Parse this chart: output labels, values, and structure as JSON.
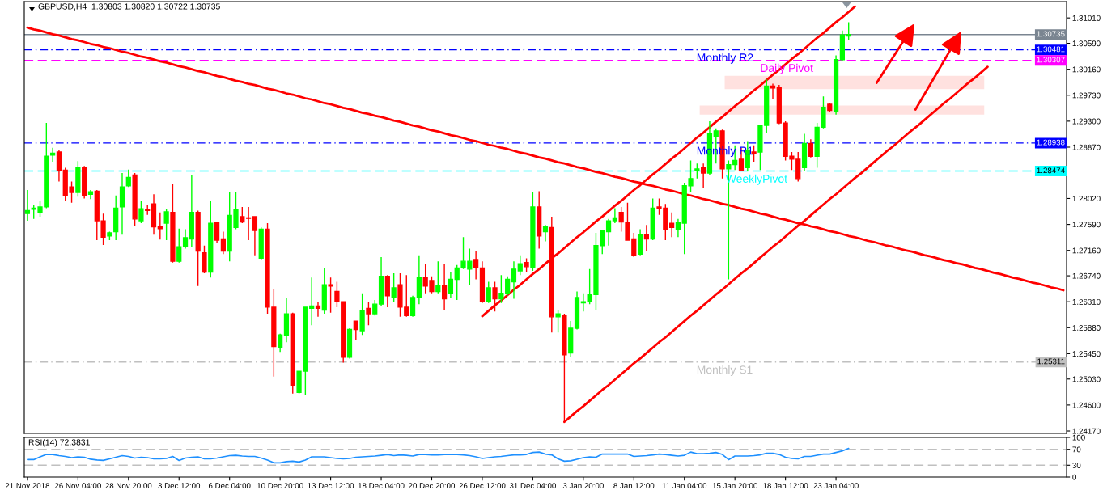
{
  "chart_data": [
    {
      "type": "candlestick",
      "title": "GBPUSD,H4  1.30803 1.30820 1.30722 1.30735",
      "categories": [
        null,
        null,
        null,
        null,
        null,
        null,
        null,
        null,
        null,
        null,
        null,
        null,
        null,
        null,
        null,
        null,
        null,
        null,
        null,
        null,
        null,
        null,
        null,
        null,
        null,
        null,
        null,
        null,
        null,
        null,
        null,
        null,
        null,
        null,
        null,
        null,
        null,
        null,
        null,
        null,
        null,
        null,
        null,
        null,
        null,
        null,
        null,
        null,
        null,
        null,
        null,
        null,
        null,
        null,
        null,
        null,
        null,
        null,
        null,
        null,
        null,
        null,
        null,
        null,
        null,
        null,
        null,
        null,
        null,
        null,
        null,
        null,
        null,
        null,
        null,
        null,
        null,
        null,
        null,
        null,
        null,
        null,
        null,
        null,
        null,
        null,
        null,
        null,
        null,
        null,
        null,
        null,
        null,
        null,
        null,
        null,
        null,
        null,
        null,
        null,
        null,
        null,
        null,
        null,
        null,
        null,
        null,
        null,
        null,
        null,
        null,
        null,
        null,
        null,
        null,
        null,
        null,
        null,
        null,
        null,
        null,
        null,
        null,
        null,
        null,
        null,
        null,
        null,
        null,
        null,
        null,
        null,
        null,
        null,
        null,
        null,
        null,
        null,
        null,
        null,
        null,
        null,
        null,
        null,
        null,
        null,
        null,
        null,
        null,
        null,
        null,
        null,
        null,
        null,
        null,
        null,
        null,
        null,
        null,
        null,
        null,
        null,
        null,
        null,
        null
      ],
      "ohlc": [
        [
          1.2777,
          1.2816,
          1.2765,
          1.2782
        ],
        [
          1.2784,
          1.2791,
          1.2768,
          1.2786
        ],
        [
          1.2779,
          1.2798,
          1.2772,
          1.2788
        ],
        [
          1.2788,
          1.2927,
          1.2786,
          1.2872
        ],
        [
          1.2874,
          1.2886,
          1.2863,
          1.2877
        ],
        [
          1.2879,
          1.2882,
          1.283,
          1.2849
        ],
        [
          1.2849,
          1.2853,
          1.2798,
          1.2807
        ],
        [
          1.2821,
          1.283,
          1.2795,
          1.2812
        ],
        [
          1.2812,
          1.2864,
          1.2805,
          1.2853
        ],
        [
          1.2854,
          1.2856,
          1.2802,
          1.2807
        ],
        [
          1.2809,
          1.2816,
          1.2801,
          1.2813
        ],
        [
          1.2814,
          1.2816,
          1.2733,
          1.2765
        ],
        [
          1.2765,
          1.2777,
          1.2725,
          1.2738
        ],
        [
          1.274,
          1.2747,
          1.2733,
          1.2745
        ],
        [
          1.2747,
          1.2807,
          1.2733,
          1.2786
        ],
        [
          1.2788,
          1.2844,
          1.2742,
          1.2821
        ],
        [
          1.2823,
          1.285,
          1.2821,
          1.2837
        ],
        [
          1.2841,
          1.2844,
          1.2756,
          1.2768
        ],
        [
          1.2765,
          1.2798,
          1.2761,
          1.2785
        ],
        [
          1.2784,
          1.2791,
          1.2775,
          1.2782
        ],
        [
          1.2793,
          1.2809,
          1.2742,
          1.2755
        ],
        [
          1.2756,
          1.2779,
          1.2734,
          1.2752
        ],
        [
          1.2761,
          1.2784,
          1.2733,
          1.278
        ],
        [
          1.2779,
          1.2826,
          1.2696,
          1.2698
        ],
        [
          1.2698,
          1.2752,
          1.2696,
          1.2722
        ],
        [
          1.2722,
          1.2751,
          1.2719,
          1.2737
        ],
        [
          1.2735,
          1.284,
          1.2722,
          1.2779
        ],
        [
          1.2779,
          1.2782,
          1.2657,
          1.2715
        ],
        [
          1.2712,
          1.2724,
          1.2678,
          1.268
        ],
        [
          1.268,
          1.2798,
          1.2671,
          1.2761
        ],
        [
          1.2762,
          1.2763,
          1.2728,
          1.2733
        ],
        [
          1.2735,
          1.2747,
          1.271,
          1.2715
        ],
        [
          1.2715,
          1.2812,
          1.2698,
          1.2774
        ],
        [
          1.2754,
          1.2812,
          1.2751,
          1.2784
        ],
        [
          1.2772,
          1.2788,
          1.2761,
          1.2763
        ],
        [
          1.277,
          1.2788,
          1.2733,
          1.2769
        ],
        [
          1.2772,
          1.2772,
          1.2708,
          1.2749
        ],
        [
          1.2703,
          1.2754,
          1.2701,
          1.2751
        ],
        [
          1.2751,
          1.2761,
          1.2611,
          1.2622
        ],
        [
          1.2622,
          1.2652,
          1.2507,
          1.2557
        ],
        [
          1.2555,
          1.2578,
          1.2548,
          1.2576
        ],
        [
          1.2576,
          1.2638,
          1.2564,
          1.2611
        ],
        [
          1.2611,
          1.2613,
          1.2479,
          1.2493
        ],
        [
          1.2481,
          1.2516,
          1.2479,
          1.2516
        ],
        [
          1.2516,
          1.2622,
          1.2476,
          1.2622
        ],
        [
          1.262,
          1.2671,
          1.2592,
          1.2624
        ],
        [
          1.2624,
          1.2631,
          1.2606,
          1.262
        ],
        [
          1.2617,
          1.2687,
          1.2611,
          1.2659
        ],
        [
          1.2659,
          1.2671,
          1.2613,
          1.2657
        ],
        [
          1.2648,
          1.2664,
          1.2622,
          1.2631
        ],
        [
          1.2631,
          1.2631,
          1.253,
          1.2539
        ],
        [
          1.2539,
          1.2587,
          1.2537,
          1.2585
        ],
        [
          1.2599,
          1.2599,
          1.2567,
          1.2585
        ],
        [
          1.2583,
          1.2645,
          1.2576,
          1.2617
        ],
        [
          1.262,
          1.2631,
          1.2592,
          1.2611
        ],
        [
          1.2611,
          1.2634,
          1.2608,
          1.2627
        ],
        [
          1.2627,
          1.2705,
          1.2624,
          1.2673
        ],
        [
          1.2673,
          1.2675,
          1.2622,
          1.2641
        ],
        [
          1.2638,
          1.2678,
          1.2631,
          1.2654
        ],
        [
          1.2659,
          1.2678,
          1.2606,
          1.2622
        ],
        [
          1.2622,
          1.2675,
          1.2606,
          1.2608
        ],
        [
          1.2608,
          1.2641,
          1.2606,
          1.2638
        ],
        [
          1.2638,
          1.2708,
          1.2627,
          1.2671
        ],
        [
          1.2671,
          1.2694,
          1.2645,
          1.2657
        ],
        [
          1.2666,
          1.2673,
          1.2645,
          1.2648
        ],
        [
          1.2648,
          1.2698,
          1.2645,
          1.2657
        ],
        [
          1.2657,
          1.2694,
          1.2617,
          1.2636
        ],
        [
          1.2645,
          1.268,
          1.2638,
          1.2668
        ],
        [
          1.2668,
          1.2692,
          1.2634,
          1.2687
        ],
        [
          1.2687,
          1.2738,
          1.2685,
          1.2698
        ],
        [
          1.2685,
          1.2719,
          1.2659,
          1.2698
        ],
        [
          1.2701,
          1.2715,
          1.2668,
          1.2687
        ],
        [
          1.2687,
          1.2698,
          1.2629,
          1.2631
        ],
        [
          1.2631,
          1.2664,
          1.2629,
          1.2654
        ],
        [
          1.2654,
          1.2664,
          1.2615,
          1.2636
        ],
        [
          1.2636,
          1.2675,
          1.2629,
          1.2645
        ],
        [
          1.2645,
          1.2673,
          1.2641,
          1.2668
        ],
        [
          1.2664,
          1.2698,
          1.2636,
          1.2685
        ],
        [
          1.2682,
          1.2708,
          1.2675,
          1.2694
        ],
        [
          1.2696,
          1.2703,
          1.268,
          1.2689
        ],
        [
          1.2687,
          1.2812,
          1.2682,
          1.2788
        ],
        [
          1.2788,
          1.2814,
          1.2719,
          1.274
        ],
        [
          1.2747,
          1.2758,
          1.2731,
          1.2756
        ],
        [
          1.2754,
          1.2772,
          1.258,
          1.2606
        ],
        [
          1.2606,
          1.2617,
          1.258,
          1.2611
        ],
        [
          1.2608,
          1.2611,
          1.2432,
          1.2543
        ],
        [
          1.2546,
          1.2599,
          1.2539,
          1.2587
        ],
        [
          1.2587,
          1.2648,
          1.2585,
          1.2638
        ],
        [
          1.2629,
          1.2645,
          1.2615,
          1.2631
        ],
        [
          1.2631,
          1.2685,
          1.2627,
          1.2643
        ],
        [
          1.2643,
          1.2745,
          1.2617,
          1.2724
        ],
        [
          1.2724,
          1.2749,
          1.271,
          1.2749
        ],
        [
          1.2747,
          1.2768,
          1.2724,
          1.2765
        ],
        [
          1.2765,
          1.2786,
          1.2761,
          1.277
        ],
        [
          1.2779,
          1.2788,
          1.2747,
          1.2763
        ],
        [
          1.2763,
          1.2795,
          1.2733,
          1.2733
        ],
        [
          1.2735,
          1.2745,
          1.2705,
          1.2708
        ],
        [
          1.271,
          1.2751,
          1.2708,
          1.2742
        ],
        [
          1.2742,
          1.2758,
          1.2715,
          1.2735
        ],
        [
          1.2735,
          1.2802,
          1.2733,
          1.2786
        ],
        [
          1.2788,
          1.2802,
          1.2775,
          1.2785
        ],
        [
          1.2786,
          1.2793,
          1.2733,
          1.2751
        ],
        [
          1.2761,
          1.2779,
          1.2738,
          1.2754
        ],
        [
          1.2751,
          1.2768,
          1.2738,
          1.2763
        ],
        [
          1.2761,
          1.2828,
          1.271,
          1.2823
        ],
        [
          1.2823,
          1.2865,
          1.2812,
          1.2835
        ],
        [
          1.2849,
          1.286,
          1.2835,
          1.2851
        ],
        [
          1.2853,
          1.286,
          1.2819,
          1.2844
        ],
        [
          1.2844,
          1.293,
          1.284,
          1.2909
        ],
        [
          1.2904,
          1.2918,
          1.286,
          1.2914
        ],
        [
          1.2914,
          1.2916,
          1.2835,
          1.2851
        ],
        [
          1.2851,
          1.2865,
          1.2668,
          1.2858
        ],
        [
          1.2858,
          1.289,
          1.2849,
          1.2865
        ],
        [
          1.2867,
          1.2886,
          1.2847,
          1.2849
        ],
        [
          1.2853,
          1.2897,
          1.2847,
          1.2881
        ],
        [
          1.2879,
          1.289,
          1.2863,
          1.2877
        ],
        [
          1.2879,
          1.2923,
          1.2849,
          1.2923
        ],
        [
          1.2923,
          1.2999,
          1.2911,
          1.2988
        ],
        [
          1.2988,
          1.2992,
          1.2967,
          1.2985
        ],
        [
          1.2985,
          1.299,
          1.2925,
          1.2927
        ],
        [
          1.2927,
          1.293,
          1.2865,
          1.2872
        ],
        [
          1.2872,
          1.2879,
          1.2849,
          1.2867
        ],
        [
          1.2867,
          1.2879,
          1.283,
          1.2835
        ],
        [
          1.2853,
          1.2909,
          1.2847,
          1.2893
        ],
        [
          1.2893,
          1.29,
          1.287,
          1.2872
        ],
        [
          1.2872,
          1.2927,
          1.2853,
          1.292
        ],
        [
          1.292,
          1.2971,
          1.2918,
          1.2953
        ],
        [
          1.2958,
          1.296,
          1.2946,
          1.2948
        ],
        [
          1.2946,
          1.3039,
          1.2941,
          1.3032
        ],
        [
          1.3032,
          1.308,
          1.3029,
          1.3073
        ],
        [
          1.3071,
          1.3094,
          1.3064,
          1.30735
        ],
        null,
        null,
        null,
        null,
        null,
        null,
        null,
        null,
        null,
        null,
        null,
        null,
        null,
        null,
        null,
        null,
        null,
        null,
        null,
        null,
        null,
        null,
        null,
        null,
        null,
        null,
        null,
        null,
        null,
        null,
        null,
        null,
        null,
        null
      ],
      "colors": [
        "#00ff00",
        "#00ff00",
        "#00ff00",
        "#00ff00",
        "#00ff00",
        "#ff0000",
        "#ff0000",
        "#ff0000",
        "#00ff00",
        "#ff0000",
        "#00ff00",
        "#ff0000",
        "#ff0000",
        "#00ff00",
        "#00ff00",
        "#00ff00",
        "#00ff00",
        "#ff0000",
        "#00ff00",
        "#ff0000",
        "#ff0000",
        "#ff0000",
        "#00ff00",
        "#ff0000",
        "#00ff00",
        "#00ff00",
        "#00ff00",
        "#ff0000",
        "#ff0000",
        "#00ff00",
        "#ff0000",
        "#ff0000",
        "#00ff00",
        "#00ff00",
        "#ff0000",
        "#ff0000",
        "#ff0000",
        "#00ff00",
        "#ff0000",
        "#ff0000",
        "#00ff00",
        "#00ff00",
        "#ff0000",
        "#00ff00",
        "#00ff00",
        "#00ff00",
        "#ff0000",
        "#00ff00",
        "#ff0000",
        "#ff0000",
        "#ff0000",
        "#00ff00",
        "#ff0000",
        "#00ff00",
        "#ff0000",
        "#00ff00",
        "#00ff00",
        "#ff0000",
        "#00ff00",
        "#ff0000",
        "#ff0000",
        "#00ff00",
        "#00ff00",
        "#ff0000",
        "#ff0000",
        "#00ff00",
        "#ff0000",
        "#00ff00",
        "#00ff00",
        "#00ff00",
        "#00ff00",
        "#ff0000",
        "#ff0000",
        "#00ff00",
        "#ff0000",
        "#00ff00",
        "#00ff00",
        "#00ff00",
        "#00ff00",
        "#ff0000",
        "#00ff00",
        "#ff0000",
        "#00ff00",
        "#ff0000",
        "#00ff00",
        "#ff0000",
        "#00ff00",
        "#00ff00",
        "#00ff00",
        "#00ff00",
        "#00ff00",
        "#00ff00",
        "#00ff00",
        "#00ff00",
        "#ff0000",
        "#ff0000",
        "#ff0000",
        "#00ff00",
        "#ff0000",
        "#00ff00",
        "#ff0000",
        "#ff0000",
        "#ff0000",
        "#00ff00",
        "#00ff00",
        "#00ff00",
        "#00ff00",
        "#ff0000",
        "#00ff00",
        "#00ff00",
        "#ff0000",
        "#00ff00",
        "#00ff00",
        "#ff0000",
        "#00ff00",
        "#ff0000",
        "#00ff00",
        "#00ff00",
        "#ff0000",
        "#ff0000",
        "#ff0000",
        "#ff0000",
        "#ff0000",
        "#00ff00",
        "#ff0000",
        "#00ff00",
        "#00ff00",
        "#ff0000",
        "#00ff00",
        "#00ff00",
        "#00ff00",
        null,
        null,
        null,
        null,
        null,
        null,
        null,
        null,
        null,
        null,
        null,
        null,
        null,
        null,
        null,
        null,
        null,
        null,
        null,
        null,
        null,
        null,
        null,
        null,
        null,
        null,
        null,
        null,
        null,
        null,
        null,
        null,
        null,
        null
      ],
      "series": [
        {
          "type": "line",
          "color": "#ff0000",
          "values": [
            1.3085,
            1.3082,
            1.308,
            1.3077,
            1.3074,
            1.3072,
            1.3069,
            1.3066,
            1.3064,
            1.3061,
            1.3058,
            1.3056,
            1.3053,
            1.3051,
            1.3048,
            1.3045,
            1.3043,
            1.304,
            1.3037,
            1.3035,
            1.3032,
            1.3029,
            1.3027,
            1.3024,
            1.3021,
            1.3019,
            1.3016,
            1.3013,
            1.3011,
            1.3008,
            1.3005,
            1.3003,
            1.3,
            1.2997,
            1.2995,
            1.2992,
            1.299,
            1.2987,
            1.2984,
            1.2982,
            1.2979,
            1.2976,
            1.2974,
            1.2971,
            1.2968,
            1.2966,
            1.2963,
            1.296,
            1.2958,
            1.2955,
            1.2952,
            1.295,
            1.2947,
            1.2944,
            1.2942,
            1.2939,
            1.2937,
            1.2934,
            1.2931,
            1.2929,
            1.2926,
            1.2923,
            1.2921,
            1.2918,
            1.2915,
            1.2913,
            1.291,
            1.2907,
            1.2905,
            1.2902,
            1.2899,
            1.2897,
            1.2894,
            1.2891,
            1.2889,
            1.2886,
            1.2884,
            1.2881,
            1.2878,
            1.2876,
            1.2873,
            1.287,
            1.2868,
            1.2865,
            1.2862,
            1.286,
            1.2857,
            1.2854,
            1.2852,
            1.2849,
            1.2846,
            1.2844,
            1.2841,
            1.2838,
            1.2836,
            1.2833,
            1.283,
            1.2828,
            1.2825,
            1.2823,
            1.282,
            1.2817,
            1.2815,
            1.2812,
            1.2809,
            1.2807,
            1.2804,
            1.2801,
            1.2799,
            1.2796,
            1.2793,
            1.2791,
            1.2788,
            1.2785,
            1.2783,
            1.278,
            1.2777,
            1.2775,
            1.2772,
            1.2769,
            1.2767,
            1.2764,
            1.2761,
            1.2759,
            1.2756,
            1.2754,
            1.2751,
            1.2748,
            1.2746,
            1.2743,
            1.274,
            1.2738,
            1.2735,
            1.2732,
            1.273,
            1.2727,
            1.2724,
            1.2722,
            1.2719,
            1.2716,
            1.2714,
            1.2711,
            1.2708,
            1.2706,
            1.2703,
            1.27,
            1.2698,
            1.2695,
            1.2693,
            1.269,
            1.2687,
            1.2685,
            1.2682,
            1.2679,
            1.2677,
            1.2674,
            1.2671,
            1.2669,
            1.2666,
            1.2663,
            1.2661,
            1.2658,
            1.2655,
            1.2653,
            1.265
          ]
        },
        {
          "type": "line",
          "color": "#ff0000",
          "values": [
            null,
            null,
            null,
            null,
            null,
            null,
            null,
            null,
            null,
            null,
            null,
            null,
            null,
            null,
            null,
            null,
            null,
            null,
            null,
            null,
            null,
            null,
            null,
            null,
            null,
            null,
            null,
            null,
            null,
            null,
            null,
            null,
            null,
            null,
            null,
            null,
            null,
            null,
            null,
            null,
            null,
            null,
            null,
            null,
            null,
            null,
            null,
            null,
            null,
            null,
            null,
            null,
            null,
            null,
            null,
            null,
            null,
            null,
            null,
            null,
            null,
            null,
            null,
            null,
            null,
            null,
            null,
            null,
            null,
            null,
            null,
            null,
            1.2607,
            1.2616,
            1.2625,
            1.2633,
            1.2642,
            1.2651,
            1.2659,
            1.2668,
            1.2677,
            1.2685,
            1.2694,
            1.2703,
            1.2711,
            1.272,
            1.2729,
            1.2738,
            1.2746,
            1.2755,
            1.2764,
            1.2772,
            1.2781,
            1.279,
            1.2798,
            1.2807,
            1.2816,
            1.2824,
            1.2833,
            1.2842,
            1.285,
            1.2859,
            1.2868,
            1.2876,
            1.2885,
            1.2894,
            1.2903,
            1.2911,
            1.292,
            1.2929,
            1.2937,
            1.2946,
            1.2955,
            1.2963,
            1.2972,
            1.2981,
            1.2989,
            1.2998,
            1.3007,
            1.3015,
            1.3024,
            1.3033,
            1.3041,
            1.305,
            1.3059,
            1.3068,
            1.3076,
            1.3085,
            1.3094,
            1.3102,
            1.3111,
            1.312,
            null,
            null,
            null,
            null,
            null,
            null,
            null,
            null,
            null,
            null,
            null,
            null,
            null,
            null,
            null,
            null,
            null,
            null,
            null,
            null,
            null,
            null,
            null,
            null,
            null,
            null,
            null,
            null,
            null,
            null,
            null,
            null,
            null
          ]
        },
        {
          "type": "line",
          "color": "#ff0000",
          "values": [
            null,
            null,
            null,
            null,
            null,
            null,
            null,
            null,
            null,
            null,
            null,
            null,
            null,
            null,
            null,
            null,
            null,
            null,
            null,
            null,
            null,
            null,
            null,
            null,
            null,
            null,
            null,
            null,
            null,
            null,
            null,
            null,
            null,
            null,
            null,
            null,
            null,
            null,
            null,
            null,
            null,
            null,
            null,
            null,
            null,
            null,
            null,
            null,
            null,
            null,
            null,
            null,
            null,
            null,
            null,
            null,
            null,
            null,
            null,
            null,
            null,
            null,
            null,
            null,
            null,
            null,
            null,
            null,
            null,
            null,
            null,
            null,
            null,
            null,
            null,
            null,
            null,
            null,
            null,
            null,
            null,
            null,
            null,
            null,
            null,
            1.2432,
            1.2441,
            1.245,
            1.2458,
            1.2467,
            1.2476,
            1.2485,
            1.2493,
            1.2502,
            1.2511,
            1.252,
            1.2529,
            1.2537,
            1.2546,
            1.2555,
            1.2564,
            1.2572,
            1.2581,
            1.259,
            1.2599,
            1.2608,
            1.2616,
            1.2625,
            1.2634,
            1.2643,
            1.2651,
            1.266,
            1.2669,
            1.2678,
            1.2686,
            1.2695,
            1.2704,
            1.2713,
            1.2722,
            1.273,
            1.2739,
            1.2748,
            1.2757,
            1.2765,
            1.2774,
            1.2783,
            1.2792,
            1.2801,
            1.2809,
            1.2818,
            1.2827,
            1.2836,
            1.2844,
            1.2853,
            1.2862,
            1.2871,
            1.288,
            1.2888,
            1.2897,
            1.2906,
            1.2915,
            1.2923,
            1.2932,
            1.2941,
            1.295,
            1.2959,
            1.2967,
            1.2976,
            1.2985,
            1.2994,
            1.3002,
            1.3011,
            1.302,
            null,
            null,
            null,
            null,
            null,
            null,
            null,
            null,
            null,
            null,
            null,
            null
          ]
        }
      ],
      "ref_lines": [
        {
          "axis": "y",
          "value": 1.30735,
          "label": "1.30735",
          "color": "#7a8591",
          "line_style": "solid"
        },
        {
          "axis": "y",
          "value": 1.30481,
          "label": "1.30481",
          "color": "#0000ff",
          "line_style": "dashdot"
        },
        {
          "axis": "y",
          "value": 1.30307,
          "label": "1.30307",
          "color": "#ff00ff",
          "line_style": "dashed"
        },
        {
          "axis": "y",
          "value": 1.28938,
          "label": "1.28938",
          "color": "#0000ff",
          "line_style": "dashdot"
        },
        {
          "axis": "y",
          "value": 1.28474,
          "label": "1.28474",
          "color": "#00ffff",
          "line_style": "dashed"
        },
        {
          "axis": "y",
          "value": 1.25311,
          "label": "1.25311",
          "color": "#c0c0c0",
          "line_style": "dashdot"
        }
      ],
      "bands": [
        {
          "axis": "y",
          "from": 1.2983,
          "to": 1.3005,
          "color": "#ffe1df"
        },
        {
          "axis": "y",
          "from": 1.2941,
          "to": 1.2956,
          "color": "#ffe1df"
        }
      ],
      "annotations": [
        {
          "text": "Monthly R2",
          "y": 1.30481
        },
        {
          "text": "Daily Pivot",
          "y": 1.30307
        },
        {
          "text": "Monthly R1",
          "y": 1.28938
        },
        {
          "text": "WeeklyPivot",
          "y": 1.28474
        },
        {
          "text": "Monthly S1",
          "y": 1.25311
        }
      ],
      "ylim": [
        1.2413,
        1.3128
      ],
      "yticks": [
        {
          "value": 1.3101,
          "label": "1.31010"
        },
        {
          "value": 1.3059,
          "label": "1.30590"
        },
        {
          "value": 1.3016,
          "label": "1.30160"
        },
        {
          "value": 1.2973,
          "label": "1.29730"
        },
        {
          "value": 1.293,
          "label": "1.29300"
        },
        {
          "value": 1.2887,
          "label": "1.28870"
        },
        {
          "value": 1.2802,
          "label": "1.28020"
        },
        {
          "value": 1.2759,
          "label": "1.27590"
        },
        {
          "value": 1.2716,
          "label": "1.27160"
        },
        {
          "value": 1.2674,
          "label": "1.26740"
        },
        {
          "value": 1.2631,
          "label": "1.26310"
        },
        {
          "value": 1.2588,
          "label": "1.25880"
        },
        {
          "value": 1.2545,
          "label": "1.25450"
        },
        {
          "value": 1.2503,
          "label": "1.25030"
        },
        {
          "value": 1.246,
          "label": "1.24600"
        },
        {
          "value": 1.2417,
          "label": "1.24170"
        }
      ],
      "tick_labels": "y"
    },
    {
      "type": "line",
      "title": "RSI(14) 72.3831",
      "categories": [
        "21 Nov 2018",
        null,
        null,
        null,
        null,
        null,
        null,
        null,
        "26 Nov 04:00",
        null,
        null,
        null,
        null,
        null,
        null,
        null,
        "28 Nov 20:00",
        null,
        null,
        null,
        null,
        null,
        null,
        null,
        "3 Dec 12:00",
        null,
        null,
        null,
        null,
        null,
        null,
        null,
        "6 Dec 04:00",
        null,
        null,
        null,
        null,
        null,
        null,
        null,
        "10 Dec 20:00",
        null,
        null,
        null,
        null,
        null,
        null,
        null,
        "13 Dec 12:00",
        null,
        null,
        null,
        null,
        null,
        null,
        null,
        "18 Dec 04:00",
        null,
        null,
        null,
        null,
        null,
        null,
        null,
        "20 Dec 20:00",
        null,
        null,
        null,
        null,
        null,
        null,
        null,
        "26 Dec 12:00",
        null,
        null,
        null,
        null,
        null,
        null,
        null,
        "31 Dec 04:00",
        null,
        null,
        null,
        null,
        null,
        null,
        null,
        "3 Jan 20:00",
        null,
        null,
        null,
        null,
        null,
        null,
        null,
        "8 Jan 12:00",
        null,
        null,
        null,
        null,
        null,
        null,
        null,
        "11 Jan 04:00",
        null,
        null,
        null,
        null,
        null,
        null,
        null,
        "15 Jan 20:00",
        null,
        null,
        null,
        null,
        null,
        null,
        null,
        "18 Jan 12:00",
        null,
        null,
        null,
        null,
        null,
        null,
        null,
        "23 Jan 04:00",
        null,
        null,
        null,
        null,
        null,
        null,
        null,
        null,
        null,
        null,
        null,
        null,
        null,
        null,
        null,
        null,
        null,
        null,
        null,
        null,
        null,
        null,
        null,
        null,
        null,
        null,
        null,
        null,
        null,
        null,
        null,
        null,
        null,
        null,
        null,
        null
      ],
      "series": [
        {
          "color": "#1e90ff",
          "values": [
            44,
            44,
            51,
            57,
            57,
            54,
            52,
            49,
            51,
            50,
            45,
            43,
            42,
            46,
            50,
            54,
            52,
            48,
            50,
            49,
            46,
            46,
            47,
            52,
            42,
            48,
            50,
            51,
            46,
            46,
            48,
            51,
            54,
            55,
            53,
            52,
            52,
            48,
            43,
            36,
            36,
            39,
            40,
            38,
            43,
            51,
            51,
            51,
            49,
            47,
            46,
            47,
            50,
            51,
            52,
            53,
            55,
            57,
            54,
            56,
            55,
            53,
            57,
            57,
            56,
            56,
            57,
            57,
            57,
            56,
            54,
            51,
            47,
            49,
            51,
            52,
            54,
            56,
            56,
            57,
            62,
            63,
            58,
            56,
            46,
            40,
            41,
            45,
            49,
            51,
            50,
            58,
            58,
            58,
            58,
            58,
            52,
            53,
            54,
            56,
            58,
            57,
            55,
            53,
            55,
            63,
            59,
            59,
            60,
            62,
            57,
            44,
            53,
            53,
            53,
            54,
            56,
            60,
            60,
            57,
            50,
            47,
            46,
            52,
            52,
            55,
            58,
            58,
            62,
            66,
            72.3831,
            null,
            null,
            null,
            null,
            null,
            null,
            null,
            null,
            null,
            null,
            null,
            null,
            null,
            null,
            null,
            null,
            null,
            null,
            null,
            null,
            null,
            null,
            null,
            null,
            null,
            null,
            null,
            null,
            null,
            null,
            null,
            null,
            null,
            null
          ]
        }
      ],
      "ref_lines": [
        {
          "axis": "y",
          "value": 70,
          "color": "#c0c0c0",
          "line_style": "dashed"
        },
        {
          "axis": "y",
          "value": 30,
          "color": "#c0c0c0",
          "line_style": "dashed"
        }
      ],
      "ylim": [
        0,
        100
      ],
      "yticks": [
        0,
        30,
        70,
        100
      ]
    }
  ]
}
